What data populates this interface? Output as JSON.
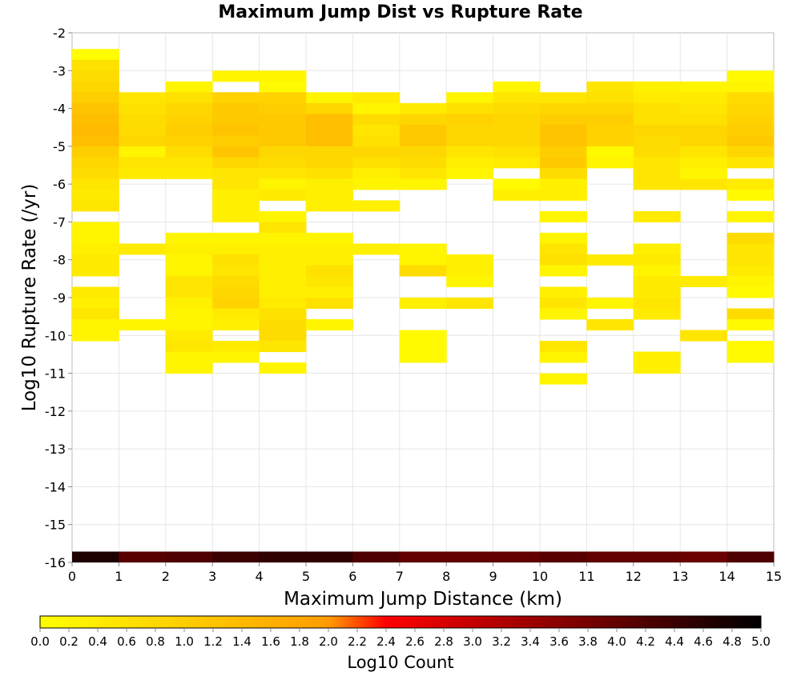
{
  "chart_data": {
    "type": "heatmap",
    "title": "Maximum Jump Dist vs Rupture Rate",
    "xlabel": "Maximum Jump Distance (km)",
    "ylabel": "Log10 Rupture Rate (/yr)",
    "xlim": [
      0,
      15
    ],
    "ylim": [
      -16,
      -2
    ],
    "x_ticks": [
      "0",
      "1",
      "2",
      "3",
      "4",
      "5",
      "6",
      "7",
      "8",
      "9",
      "10",
      "11",
      "12",
      "13",
      "14",
      "15"
    ],
    "y_ticks": [
      "-2",
      "-3",
      "-4",
      "-5",
      "-6",
      "-7",
      "-8",
      "-9",
      "-10",
      "-11",
      "-12",
      "-13",
      "-14",
      "-15",
      "-16"
    ],
    "x_bin_width": 1,
    "y_bin_height": 0.2857,
    "grid": true,
    "colorbar": {
      "label": "Log10 Count",
      "range": [
        0,
        5
      ],
      "ticks": [
        "0.0",
        "0.2",
        "0.4",
        "0.6",
        "0.8",
        "1.0",
        "1.2",
        "1.4",
        "1.6",
        "1.8",
        "2.0",
        "2.2",
        "2.4",
        "2.6",
        "2.8",
        "3.0",
        "3.2",
        "3.4",
        "3.6",
        "3.8",
        "4.0",
        "4.2",
        "4.4",
        "4.6",
        "4.8",
        "5.0"
      ],
      "colors": [
        "#ffff00",
        "#ff9c00",
        "#ff0000",
        "#000000"
      ],
      "placement": "bottom"
    },
    "columns": [
      {
        "x_start": 0,
        "cells": [
          [
            -2.714,
            0.05
          ],
          [
            -3.0,
            0.6
          ],
          [
            -3.286,
            0.7
          ],
          [
            -3.571,
            0.8
          ],
          [
            -3.857,
            1.0
          ],
          [
            -4.143,
            1.2
          ],
          [
            -4.429,
            1.3
          ],
          [
            -4.714,
            1.4
          ],
          [
            -5.0,
            1.3
          ],
          [
            -5.286,
            1.0
          ],
          [
            -5.571,
            0.8
          ],
          [
            -5.857,
            0.7
          ],
          [
            -6.143,
            0.5
          ],
          [
            -6.429,
            0.4
          ],
          [
            -6.714,
            0.5
          ],
          [
            -7.286,
            0.2
          ],
          [
            -7.571,
            0.2
          ],
          [
            -7.857,
            0.3
          ],
          [
            -8.143,
            0.4
          ],
          [
            -8.429,
            0.4
          ],
          [
            -9.0,
            0.4
          ],
          [
            -9.286,
            0.3
          ],
          [
            -9.571,
            0.5
          ],
          [
            -9.857,
            0.2
          ],
          [
            -10.143,
            0.2
          ]
        ]
      },
      {
        "x_start": 1,
        "cells": [
          [
            -3.857,
            0.5
          ],
          [
            -4.143,
            0.6
          ],
          [
            -4.429,
            0.7
          ],
          [
            -4.714,
            0.7
          ],
          [
            -5.0,
            0.8
          ],
          [
            -5.286,
            0.2
          ],
          [
            -5.571,
            0.5
          ],
          [
            -5.857,
            0.4
          ],
          [
            -7.857,
            0.4
          ],
          [
            -9.857,
            0.2
          ]
        ]
      },
      {
        "x_start": 2,
        "cells": [
          [
            -3.571,
            0.2
          ],
          [
            -3.857,
            0.6
          ],
          [
            -4.143,
            0.8
          ],
          [
            -4.429,
            0.9
          ],
          [
            -4.714,
            1.0
          ],
          [
            -5.0,
            0.9
          ],
          [
            -5.286,
            0.7
          ],
          [
            -5.571,
            0.5
          ],
          [
            -5.857,
            0.4
          ],
          [
            -7.571,
            0.2
          ],
          [
            -7.857,
            0.3
          ],
          [
            -8.143,
            0.2
          ],
          [
            -8.429,
            0.2
          ],
          [
            -8.714,
            0.5
          ],
          [
            -9.0,
            0.5
          ],
          [
            -9.286,
            0.3
          ],
          [
            -9.571,
            0.2
          ],
          [
            -9.857,
            0.2
          ],
          [
            -10.143,
            0.4
          ],
          [
            -10.429,
            0.5
          ],
          [
            -10.714,
            0.2
          ],
          [
            -11.0,
            0.2
          ]
        ]
      },
      {
        "x_start": 3,
        "cells": [
          [
            -3.286,
            0.2
          ],
          [
            -3.857,
            0.9
          ],
          [
            -4.143,
            1.1
          ],
          [
            -4.429,
            1.1
          ],
          [
            -4.714,
            1.2
          ],
          [
            -5.0,
            1.0
          ],
          [
            -5.286,
            1.2
          ],
          [
            -5.571,
            0.8
          ],
          [
            -5.857,
            0.5
          ],
          [
            -6.143,
            0.5
          ],
          [
            -6.429,
            0.3
          ],
          [
            -6.714,
            0.3
          ],
          [
            -7.0,
            0.3
          ],
          [
            -7.571,
            0.2
          ],
          [
            -7.857,
            0.3
          ],
          [
            -8.143,
            0.6
          ],
          [
            -8.429,
            0.5
          ],
          [
            -8.714,
            0.7
          ],
          [
            -9.0,
            0.8
          ],
          [
            -9.286,
            0.9
          ],
          [
            -9.571,
            0.4
          ],
          [
            -9.857,
            0.3
          ],
          [
            -10.429,
            0.4
          ],
          [
            -10.714,
            0.2
          ]
        ]
      },
      {
        "x_start": 4,
        "cells": [
          [
            -3.286,
            0.2
          ],
          [
            -3.571,
            0.1
          ],
          [
            -3.857,
            0.9
          ],
          [
            -4.143,
            1.0
          ],
          [
            -4.429,
            1.1
          ],
          [
            -4.714,
            1.1
          ],
          [
            -5.0,
            1.1
          ],
          [
            -5.286,
            0.8
          ],
          [
            -5.571,
            0.7
          ],
          [
            -5.857,
            0.5
          ],
          [
            -6.143,
            0.2
          ],
          [
            -6.429,
            0.4
          ],
          [
            -7.0,
            0.2
          ],
          [
            -7.286,
            0.5
          ],
          [
            -7.571,
            0.2
          ],
          [
            -7.857,
            0.3
          ],
          [
            -8.143,
            0.3
          ],
          [
            -8.429,
            0.3
          ],
          [
            -8.714,
            0.3
          ],
          [
            -9.0,
            0.3
          ],
          [
            -9.286,
            0.4
          ],
          [
            -9.571,
            0.6
          ],
          [
            -9.857,
            0.7
          ],
          [
            -10.143,
            0.7
          ],
          [
            -10.429,
            0.5
          ],
          [
            -11.0,
            0.2
          ]
        ]
      },
      {
        "x_start": 5,
        "cells": [
          [
            -3.857,
            0.2
          ],
          [
            -4.143,
            0.8
          ],
          [
            -4.429,
            1.3
          ],
          [
            -4.714,
            1.3
          ],
          [
            -5.0,
            1.3
          ],
          [
            -5.286,
            0.8
          ],
          [
            -5.571,
            0.8
          ],
          [
            -5.857,
            0.6
          ],
          [
            -6.143,
            0.3
          ],
          [
            -6.429,
            0.3
          ],
          [
            -6.714,
            0.3
          ],
          [
            -7.571,
            0.2
          ],
          [
            -7.857,
            0.3
          ],
          [
            -8.143,
            0.3
          ],
          [
            -8.429,
            0.6
          ],
          [
            -8.714,
            0.5
          ],
          [
            -9.0,
            0.3
          ],
          [
            -9.286,
            0.6
          ],
          [
            -9.857,
            0.2
          ]
        ]
      },
      {
        "x_start": 6,
        "cells": [
          [
            -3.857,
            0.4
          ],
          [
            -4.143,
            0.2
          ],
          [
            -4.429,
            0.7
          ],
          [
            -4.714,
            0.5
          ],
          [
            -5.0,
            0.6
          ],
          [
            -5.286,
            0.8
          ],
          [
            -5.571,
            0.6
          ],
          [
            -5.857,
            0.3
          ],
          [
            -6.143,
            0.2
          ],
          [
            -6.714,
            0.3
          ],
          [
            -7.857,
            0.3
          ]
        ]
      },
      {
        "x_start": 7,
        "cells": [
          [
            -4.143,
            0.4
          ],
          [
            -4.429,
            0.8
          ],
          [
            -4.714,
            1.1
          ],
          [
            -5.0,
            1.1
          ],
          [
            -5.286,
            0.8
          ],
          [
            -5.571,
            0.7
          ],
          [
            -5.857,
            0.5
          ],
          [
            -6.143,
            0.2
          ],
          [
            -7.857,
            0.2
          ],
          [
            -8.143,
            0.2
          ],
          [
            -8.429,
            0.7
          ],
          [
            -9.286,
            0.3
          ],
          [
            -10.143,
            0.1
          ],
          [
            -10.429,
            0.1
          ],
          [
            -10.714,
            0.1
          ]
        ]
      },
      {
        "x_start": 8,
        "cells": [
          [
            -3.857,
            0.2
          ],
          [
            -4.143,
            0.6
          ],
          [
            -4.429,
            0.9
          ],
          [
            -4.714,
            0.8
          ],
          [
            -5.0,
            0.8
          ],
          [
            -5.286,
            0.5
          ],
          [
            -5.571,
            0.3
          ],
          [
            -5.857,
            0.2
          ],
          [
            -8.143,
            0.3
          ],
          [
            -8.429,
            0.3
          ],
          [
            -8.714,
            0.2
          ],
          [
            -9.286,
            0.5
          ]
        ]
      },
      {
        "x_start": 9,
        "cells": [
          [
            -3.571,
            0.2
          ],
          [
            -3.857,
            0.5
          ],
          [
            -4.143,
            0.7
          ],
          [
            -4.429,
            0.8
          ],
          [
            -4.714,
            0.8
          ],
          [
            -5.0,
            0.8
          ],
          [
            -5.286,
            0.6
          ],
          [
            -5.571,
            0.4
          ],
          [
            -6.143,
            0.1
          ],
          [
            -6.429,
            0.3
          ]
        ]
      },
      {
        "x_start": 10,
        "cells": [
          [
            -3.857,
            0.5
          ],
          [
            -4.143,
            0.8
          ],
          [
            -4.429,
            1.0
          ],
          [
            -4.714,
            1.2
          ],
          [
            -5.0,
            1.2
          ],
          [
            -5.286,
            1.0
          ],
          [
            -5.571,
            1.1
          ],
          [
            -5.857,
            0.7
          ],
          [
            -6.143,
            0.3
          ],
          [
            -6.429,
            0.3
          ],
          [
            -7.0,
            0.2
          ],
          [
            -7.571,
            0.2
          ],
          [
            -7.857,
            0.5
          ],
          [
            -8.143,
            0.6
          ],
          [
            -8.429,
            0.2
          ],
          [
            -9.0,
            0.3
          ],
          [
            -9.286,
            0.5
          ],
          [
            -9.571,
            0.2
          ],
          [
            -10.429,
            0.5
          ],
          [
            -10.714,
            0.2
          ],
          [
            -11.286,
            0.2
          ]
        ]
      },
      {
        "x_start": 11,
        "cells": [
          [
            -3.571,
            0.5
          ],
          [
            -3.857,
            0.6
          ],
          [
            -4.143,
            0.8
          ],
          [
            -4.429,
            1.0
          ],
          [
            -4.714,
            0.9
          ],
          [
            -5.0,
            0.9
          ],
          [
            -5.286,
            0.1
          ],
          [
            -5.571,
            0.2
          ],
          [
            -8.143,
            0.4
          ],
          [
            -9.286,
            0.2
          ],
          [
            -9.857,
            0.5
          ]
        ]
      },
      {
        "x_start": 12,
        "cells": [
          [
            -3.571,
            0.3
          ],
          [
            -3.857,
            0.4
          ],
          [
            -4.143,
            0.6
          ],
          [
            -4.429,
            0.6
          ],
          [
            -4.714,
            0.8
          ],
          [
            -5.0,
            0.7
          ],
          [
            -5.286,
            0.7
          ],
          [
            -5.571,
            0.5
          ],
          [
            -5.857,
            0.5
          ],
          [
            -6.143,
            0.5
          ],
          [
            -7.0,
            0.4
          ],
          [
            -7.857,
            0.3
          ],
          [
            -8.143,
            0.4
          ],
          [
            -8.429,
            0.2
          ],
          [
            -8.714,
            0.4
          ],
          [
            -9.0,
            0.4
          ],
          [
            -9.286,
            0.5
          ],
          [
            -9.571,
            0.4
          ],
          [
            -10.714,
            0.3
          ],
          [
            -11.0,
            0.3
          ]
        ]
      },
      {
        "x_start": 13,
        "cells": [
          [
            -3.571,
            0.2
          ],
          [
            -3.857,
            0.4
          ],
          [
            -4.143,
            0.5
          ],
          [
            -4.429,
            0.6
          ],
          [
            -4.714,
            0.8
          ],
          [
            -5.0,
            0.8
          ],
          [
            -5.286,
            0.5
          ],
          [
            -5.571,
            0.3
          ],
          [
            -5.857,
            0.2
          ],
          [
            -6.143,
            0.5
          ],
          [
            -8.714,
            0.4
          ],
          [
            -10.143,
            0.5
          ]
        ]
      },
      {
        "x_start": 14,
        "cells": [
          [
            -3.286,
            0.1
          ],
          [
            -3.571,
            0.2
          ],
          [
            -3.857,
            0.7
          ],
          [
            -4.143,
            0.8
          ],
          [
            -4.429,
            0.9
          ],
          [
            -4.714,
            1.0
          ],
          [
            -5.0,
            1.1
          ],
          [
            -5.286,
            0.8
          ],
          [
            -5.571,
            0.5
          ],
          [
            -6.143,
            0.4
          ],
          [
            -6.429,
            0.1
          ],
          [
            -7.0,
            0.2
          ],
          [
            -7.571,
            0.7
          ],
          [
            -7.857,
            0.5
          ],
          [
            -8.143,
            0.5
          ],
          [
            -8.429,
            0.4
          ],
          [
            -8.714,
            0.2
          ],
          [
            -9.0,
            0.1
          ],
          [
            -9.571,
            0.7
          ],
          [
            -9.857,
            0.1
          ],
          [
            -10.429,
            0.1
          ],
          [
            -10.714,
            0.1
          ]
        ]
      }
    ],
    "bottom_row": {
      "y_start": -16.0,
      "values": [
        4.7,
        4.1,
        4.2,
        4.4,
        4.5,
        4.5,
        4.2,
        4.0,
        4.0,
        4.0,
        4.1,
        4.0,
        4.0,
        3.9,
        4.2
      ]
    }
  }
}
